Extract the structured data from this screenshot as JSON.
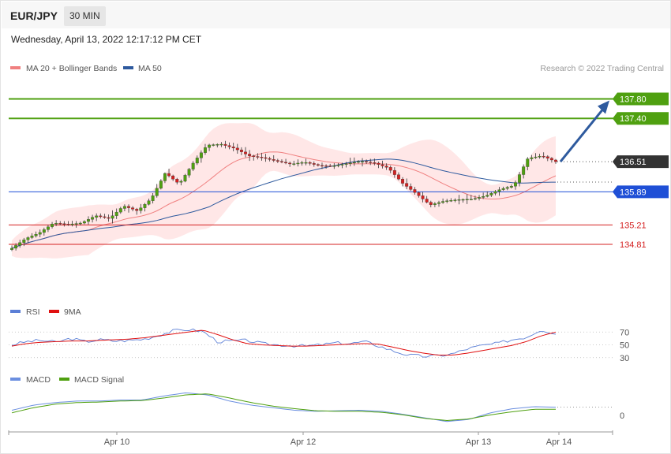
{
  "header": {
    "symbol": "EUR/JPY",
    "timeframe": "30 MIN",
    "datetime": "Wednesday, April 13, 2022 12:17:12 PM CET"
  },
  "legends": {
    "price": [
      {
        "label": "MA 20 + Bollinger Bands",
        "color": "#f08080"
      },
      {
        "label": "MA 50",
        "color": "#2e5a9e"
      }
    ],
    "rsi": [
      {
        "label": "RSI",
        "color": "#5b7fd6"
      },
      {
        "label": "9MA",
        "color": "#e01010"
      }
    ],
    "macd": [
      {
        "label": "MACD",
        "color": "#6b8fe0"
      },
      {
        "label": "MACD Signal",
        "color": "#4fa010"
      }
    ]
  },
  "copyright": "Research © 2022 Trading Central",
  "colors": {
    "bull": "#4fa010",
    "bear": "#d42020",
    "band": "#ffe3e3",
    "ma20": "#f08080",
    "ma50": "#2e5a9e",
    "resistance": "#4fa010",
    "pivot": "#1f4fd6",
    "support": "#d42020",
    "arrow": "#2e5a9e"
  },
  "chart_data": {
    "type": "candlestick",
    "x_ticks": [
      "Apr 10",
      "Apr 12",
      "Apr 13",
      "Apr 14"
    ],
    "price_range": [
      134.0,
      138.1
    ],
    "levels": [
      {
        "name": "resistance 2",
        "value": 137.8,
        "label": "137.80",
        "color": "#4fa010"
      },
      {
        "name": "resistance 1",
        "value": 137.4,
        "label": "137.40",
        "color": "#4fa010"
      },
      {
        "name": "last price",
        "value": 136.51,
        "label": "136.51",
        "color": "#333333"
      },
      {
        "name": "pivot",
        "value": 135.89,
        "label": "135.89",
        "color": "#1f4fd6"
      },
      {
        "name": "support 1",
        "value": 135.21,
        "label": "135.21",
        "color": "#d42020"
      },
      {
        "name": "support 2",
        "value": 134.81,
        "label": "134.81",
        "color": "#d42020"
      }
    ],
    "price_keypoints": [
      134.73,
      134.93,
      135.05,
      135.25,
      135.22,
      135.25,
      135.4,
      135.34,
      135.6,
      135.5,
      135.75,
      136.28,
      136.05,
      136.48,
      136.85,
      136.87,
      136.78,
      136.63,
      136.59,
      136.52,
      136.46,
      136.5,
      136.43,
      136.42,
      136.47,
      136.52,
      136.48,
      136.38,
      136.07,
      135.85,
      135.62,
      135.7,
      135.73,
      135.74,
      135.81,
      135.94,
      136.02,
      136.58,
      136.63,
      136.51
    ],
    "rsi": {
      "levels": [
        70,
        50,
        30
      ],
      "rsi_keypoints": [
        50,
        55,
        57,
        54,
        60,
        55,
        58,
        56,
        57,
        59,
        65,
        72,
        74,
        71,
        55,
        56,
        57,
        52,
        50,
        49,
        48,
        50,
        53,
        52,
        55,
        48,
        40,
        34,
        32,
        33,
        36,
        44,
        49,
        52,
        58,
        62,
        74,
        67
      ],
      "ma9_keypoints": [
        48,
        52,
        54,
        55,
        56,
        56,
        57,
        58,
        59,
        61,
        64,
        67,
        70,
        73,
        66,
        58,
        52,
        50,
        49,
        48,
        48,
        49,
        50,
        51,
        52,
        51,
        46,
        41,
        37,
        34,
        34,
        37,
        41,
        45,
        49,
        55,
        64,
        70
      ]
    },
    "macd": {
      "zero_label": "0",
      "macd_keypoints": [
        0.1,
        0.2,
        0.25,
        0.28,
        0.28,
        0.3,
        0.3,
        0.38,
        0.44,
        0.4,
        0.28,
        0.2,
        0.15,
        0.1,
        0.08,
        0.09,
        0.1,
        0.08,
        0.02,
        -0.05,
        -0.12,
        -0.08,
        0.05,
        0.13,
        0.17,
        0.16
      ],
      "signal_keypoints": [
        0.05,
        0.15,
        0.22,
        0.25,
        0.26,
        0.28,
        0.29,
        0.34,
        0.4,
        0.42,
        0.34,
        0.25,
        0.18,
        0.13,
        0.09,
        0.08,
        0.08,
        0.06,
        0.01,
        -0.06,
        -0.1,
        -0.07,
        0.01,
        0.07,
        0.12,
        0.12
      ]
    }
  }
}
